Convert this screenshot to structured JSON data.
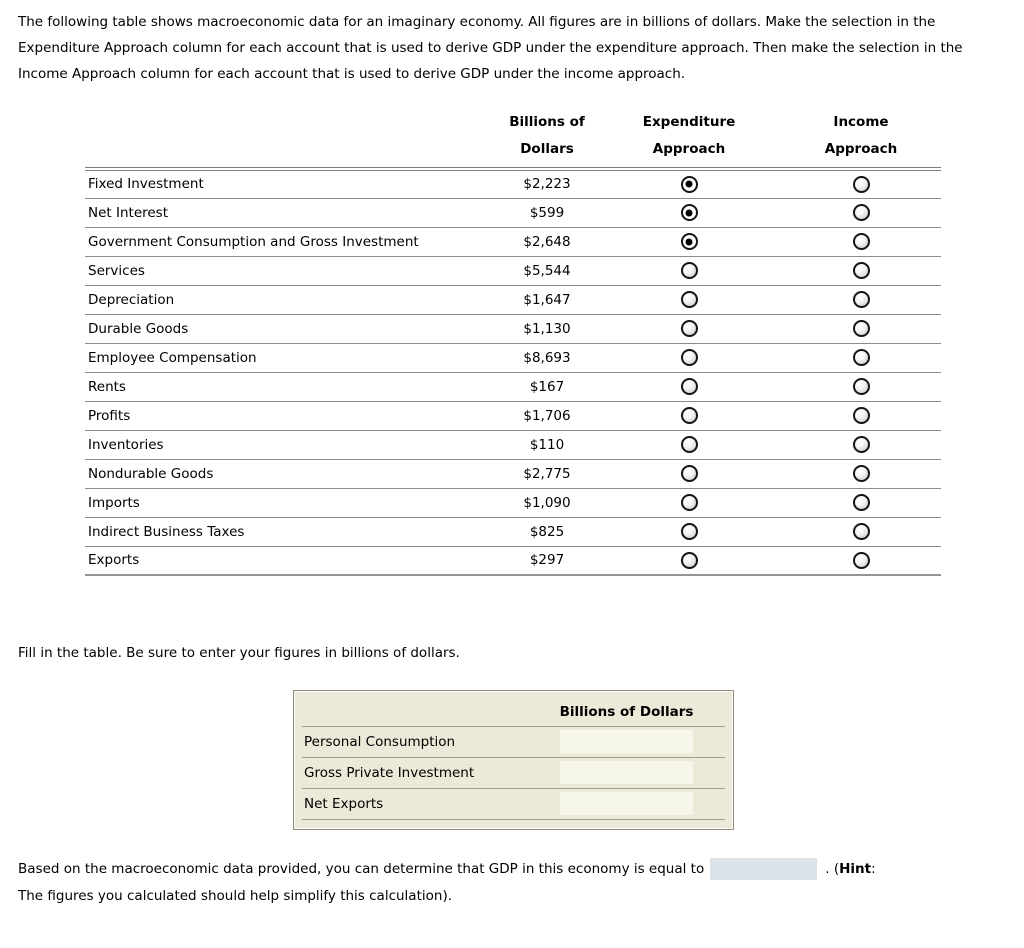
{
  "intro": {
    "text": "The following table shows macroeconomic data for an imaginary economy. All figures are in billions of dollars. Make the selection in the Expenditure Approach column for each account that is used to derive GDP under the expenditure approach. Then make the selection in the Income Approach column for each account that is used to derive GDP under the income approach."
  },
  "accounts_table": {
    "column_headers": {
      "account": "",
      "value": [
        "Billions of",
        "Dollars"
      ],
      "expenditure": [
        "Expenditure",
        "Approach"
      ],
      "income": [
        "Income",
        "Approach"
      ]
    },
    "rows": [
      {
        "label": "Fixed Investment",
        "value": "$2,223",
        "expenditure_selected": true,
        "income_selected": false
      },
      {
        "label": "Net Interest",
        "value": "$599",
        "expenditure_selected": true,
        "income_selected": false
      },
      {
        "label": "Government Consumption and Gross Investment",
        "value": "$2,648",
        "expenditure_selected": true,
        "income_selected": false
      },
      {
        "label": "Services",
        "value": "$5,544",
        "expenditure_selected": false,
        "income_selected": false
      },
      {
        "label": "Depreciation",
        "value": "$1,647",
        "expenditure_selected": false,
        "income_selected": false
      },
      {
        "label": "Durable Goods",
        "value": "$1,130",
        "expenditure_selected": false,
        "income_selected": false
      },
      {
        "label": "Employee Compensation",
        "value": "$8,693",
        "expenditure_selected": false,
        "income_selected": false
      },
      {
        "label": "Rents",
        "value": "$167",
        "expenditure_selected": false,
        "income_selected": false
      },
      {
        "label": "Profits",
        "value": "$1,706",
        "expenditure_selected": false,
        "income_selected": false
      },
      {
        "label": "Inventories",
        "value": "$110",
        "expenditure_selected": false,
        "income_selected": false
      },
      {
        "label": "Nondurable Goods",
        "value": "$2,775",
        "expenditure_selected": false,
        "income_selected": false
      },
      {
        "label": "Imports",
        "value": "$1,090",
        "expenditure_selected": false,
        "income_selected": false
      },
      {
        "label": "Indirect Business Taxes",
        "value": "$825",
        "expenditure_selected": false,
        "income_selected": false
      },
      {
        "label": "Exports",
        "value": "$297",
        "expenditure_selected": false,
        "income_selected": false
      }
    ]
  },
  "fill_section": {
    "instruction": "Fill in the table. Be sure to enter your figures in billions of dollars.",
    "table": {
      "header": "Billions of Dollars",
      "rows": [
        {
          "label": "Personal Consumption",
          "value": ""
        },
        {
          "label": "Gross Private Investment",
          "value": ""
        },
        {
          "label": "Net Exports",
          "value": ""
        }
      ]
    }
  },
  "conclusion": {
    "before_input": "Based on the macroeconomic data provided, you can determine that GDP in this economy is equal to",
    "gdp_value": "",
    "after_input": ". (",
    "hint_label": "Hint",
    "colon": ":",
    "line2": "The figures you calculated should help simplify this calculation)."
  },
  "colors": {
    "fill_table_bg": "#ece9d8",
    "fill_input_bg": "#f7f6ea",
    "gdp_input_bg": "#dce3e8",
    "table_line": "#8c8c8c"
  }
}
